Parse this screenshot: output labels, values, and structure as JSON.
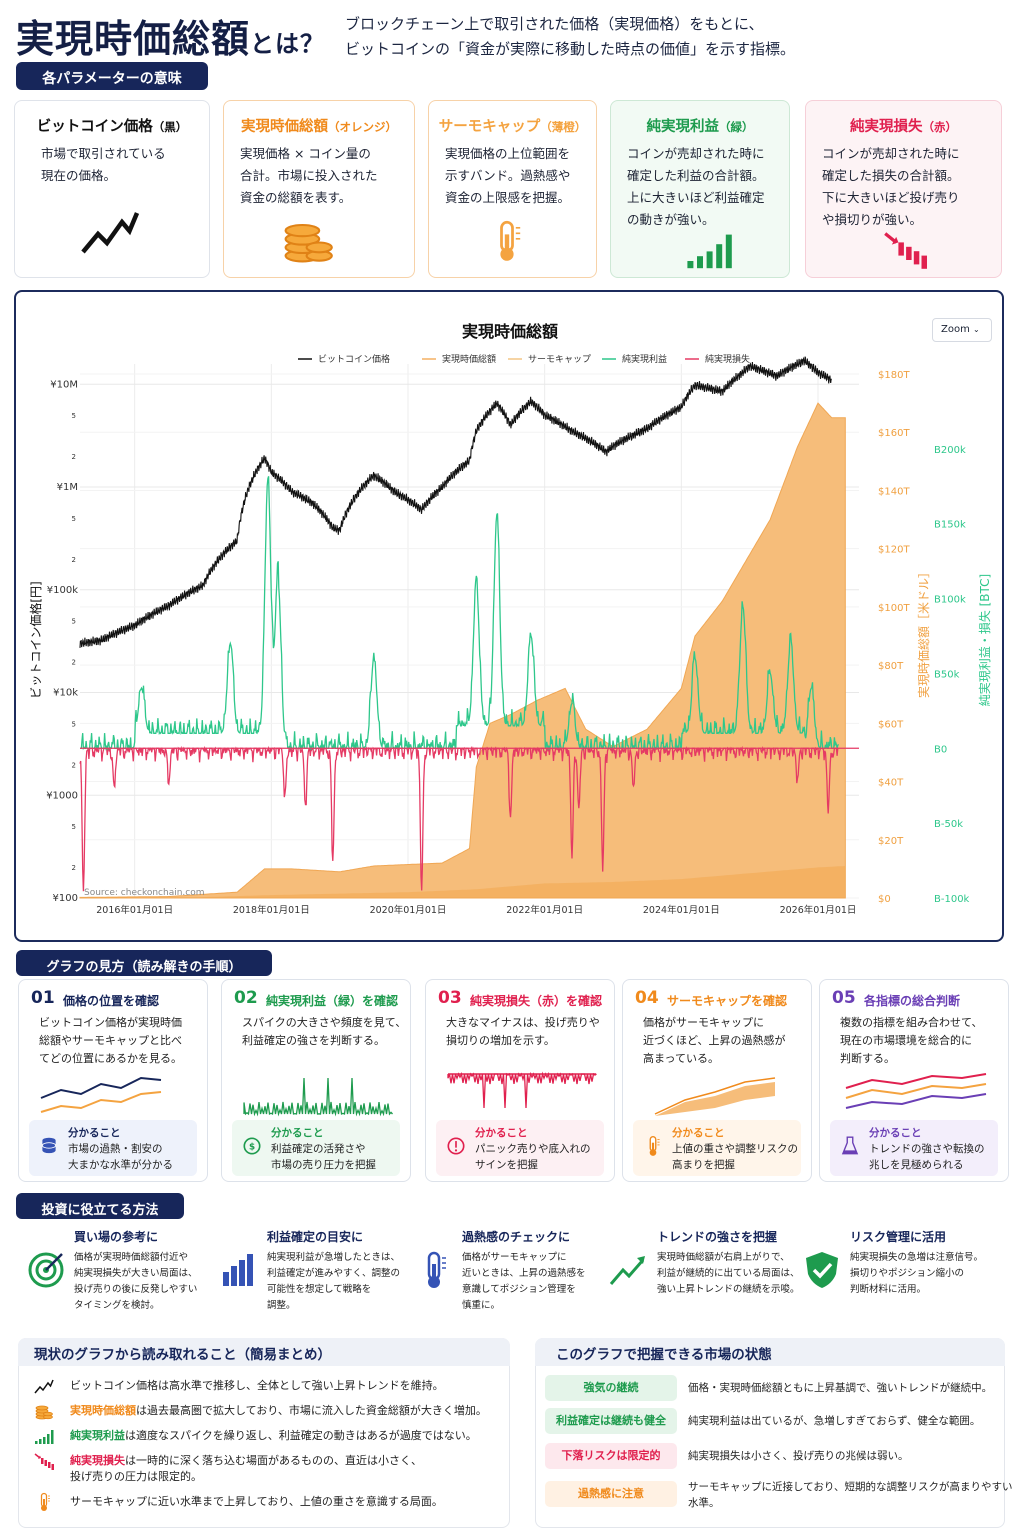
{
  "header": {
    "title_main": "実現時価総額",
    "title_suffix": "とは？",
    "subtitle_line1": "ブロックチェーン上で取引された価格（実現価格）をもとに、",
    "subtitle_line2": "ビットコインの「資金が実際に移動した時点の価値」を示す指標。"
  },
  "params": {
    "heading": "各パラメーターの意味",
    "cards": [
      {
        "title": "ビットコイン価格",
        "suffix": "（黒）",
        "desc": [
          "市場で取引されている",
          "現在の価格。"
        ],
        "color": "#111111",
        "icon": "trend-line-icon"
      },
      {
        "title": "実現時価総額",
        "suffix": "（オレンジ）",
        "desc": [
          "実現価格 × コイン量の",
          "合計。市場に投入された",
          "資金の総額を表す。"
        ],
        "color": "#f08a1c",
        "icon": "coin-stack-icon"
      },
      {
        "title": "サーモキャップ",
        "suffix": "（薄橙）",
        "desc": [
          "実現価格の上位範囲を",
          "示すバンド。過熱感や",
          "資金の上限感を把握。"
        ],
        "color": "#f4a340",
        "icon": "thermometer-icon"
      },
      {
        "title": "純実現利益",
        "suffix": "（緑）",
        "desc": [
          "コインが売却された時に",
          "確定した利益の合計額。",
          "上に大きいほど利益確定",
          "の動きが強い。"
        ],
        "color": "#1e9b4e",
        "icon": "bar-up-icon"
      },
      {
        "title": "純実現損失",
        "suffix": "（赤）",
        "desc": [
          "コインが売却された時に",
          "確定した損失の合計額。",
          "下に大きいほど投げ売り",
          "や損切りが強い。"
        ],
        "color": "#e0204e",
        "icon": "bar-down-icon"
      }
    ]
  },
  "chart": {
    "zoom_label": "Zoom",
    "source": "Source: checkonchain.com"
  },
  "chart_data": {
    "type": "line",
    "title": "実現時価総額",
    "legend": [
      "ビットコイン価格",
      "実現時価総額",
      "サーモキャップ",
      "純実現利益",
      "純実現損失"
    ],
    "x_ticks": [
      "2016年01月01日",
      "2018年01月01日",
      "2020年01月01日",
      "2022年01月01日",
      "2024年01月01日",
      "2026年01月01日"
    ],
    "ylabel_left": "ビットコイン価格[円]",
    "ylabel_right1": "実現時価総額［米ドル］",
    "ylabel_right2": "純実現利益・損失 [BTC]",
    "y_left_ticks": [
      "¥100",
      "2",
      "5",
      "¥1000",
      "2",
      "5",
      "¥10k",
      "2",
      "5",
      "¥100k",
      "2",
      "5",
      "¥1M",
      "2",
      "5",
      "¥10M"
    ],
    "y_right1_ticks": [
      "$0",
      "$20T",
      "$40T",
      "$60T",
      "$80T",
      "$100T",
      "$120T",
      "$140T",
      "$160T",
      "$180T"
    ],
    "y_right2_ticks": [
      "B-100k",
      "B-50k",
      "B0",
      "B50k",
      "B100k",
      "B150k",
      "B200k"
    ],
    "x_range": [
      2015.2,
      2026.6
    ],
    "y_left_log_range": [
      2,
      7.1
    ],
    "y_right1_range": [
      0,
      180
    ],
    "y_right2_range": [
      -100000,
      250000
    ],
    "series": [
      {
        "name": "ビットコイン価格",
        "unit": "JPY",
        "x": [
          2015.2,
          2015.5,
          2016.0,
          2016.5,
          2017.0,
          2017.5,
          2017.9,
          2018.0,
          2018.3,
          2018.6,
          2018.9,
          2019.0,
          2019.5,
          2019.8,
          2020.2,
          2020.5,
          2020.9,
          2021.0,
          2021.3,
          2021.5,
          2021.8,
          2022.0,
          2022.4,
          2022.9,
          2023.0,
          2023.5,
          2024.0,
          2024.2,
          2024.6,
          2024.9,
          2025.0,
          2025.4,
          2025.8,
          2026.0,
          2026.2
        ],
        "y": [
          30000,
          32000,
          45000,
          70000,
          110000,
          300000,
          1900000,
          1400000,
          900000,
          700000,
          400000,
          380000,
          1300000,
          900000,
          600000,
          1000000,
          1800000,
          3500000,
          6500000,
          4000000,
          6800000,
          5000000,
          3500000,
          2200000,
          2500000,
          3700000,
          6000000,
          9800000,
          8500000,
          13000000,
          15000000,
          12000000,
          17000000,
          13000000,
          11000000
        ]
      },
      {
        "name": "実現時価総額",
        "unit": "USD T",
        "x": [
          2015.2,
          2016.5,
          2017.5,
          2017.9,
          2018.3,
          2019.0,
          2019.5,
          2020.5,
          2020.9,
          2021.0,
          2021.2,
          2021.5,
          2021.9,
          2022.3,
          2022.6,
          2023.0,
          2023.5,
          2024.0,
          2024.2,
          2024.6,
          2025.0,
          2025.3,
          2025.7,
          2026.0,
          2026.2,
          2026.4
        ],
        "y": [
          0.2,
          0.5,
          2,
          10,
          10,
          9,
          11,
          12,
          17,
          45,
          60,
          63,
          68,
          72,
          58,
          52,
          58,
          72,
          90,
          102,
          118,
          130,
          155,
          170,
          165,
          165
        ]
      },
      {
        "name": "サーモキャップ",
        "unit": "USD T",
        "x": [
          2015.2,
          2017.0,
          2018.0,
          2019.0,
          2020.0,
          2021.0,
          2022.0,
          2023.0,
          2024.0,
          2025.0,
          2026.0,
          2026.4
        ],
        "y": [
          0,
          0.3,
          1,
          1.5,
          2,
          3,
          5,
          5.5,
          6.5,
          8.5,
          10.5,
          11
        ]
      }
    ]
  },
  "howto": {
    "heading": "グラフの見方（読み解きの手順）",
    "know_label": "分かること",
    "steps": [
      {
        "num": "01",
        "title": "価格の位置を確認",
        "desc": [
          "ビットコイン価格が実現時価",
          "総額やサーモキャップと比べ",
          "てどの位置にあるかを見る。"
        ],
        "know": [
          "市場の過熱・割安の",
          "大まかな水準が分かる"
        ],
        "color": "#17265a",
        "bg": "#eef2fb"
      },
      {
        "num": "02",
        "title": "純実現利益（緑）を確認",
        "desc": [
          "スパイクの大きさや頻度を見て、",
          "利益確定の強さを判断する。"
        ],
        "know": [
          "利益確定の活発さや",
          "市場の売り圧力を把握"
        ],
        "color": "#1e9b4e",
        "bg": "#eef8f1"
      },
      {
        "num": "03",
        "title": "純実現損失（赤）を確認",
        "desc": [
          "大きなマイナスは、投げ売りや",
          "損切りの増加を示す。"
        ],
        "know": [
          "パニック売りや底入れの",
          "サインを把握"
        ],
        "color": "#e0204e",
        "bg": "#fdf0f3"
      },
      {
        "num": "04",
        "title": "サーモキャップを確認",
        "desc": [
          "価格がサーモキャップに",
          "近づくほど、上昇の過熱感が",
          "高まっている。"
        ],
        "know": [
          "上値の重さや調整リスクの",
          "高まりを把握"
        ],
        "color": "#f08a1c",
        "bg": "#fff5ea"
      },
      {
        "num": "05",
        "title": "各指標の総合判断",
        "desc": [
          "複数の指標を組み合わせて、",
          "現在の市場環境を総合的に",
          "判断する。"
        ],
        "know": [
          "トレンドの強さや転換の",
          "兆しを見極められる"
        ],
        "color": "#6a3fb5",
        "bg": "#f3eefb"
      }
    ]
  },
  "usage": {
    "heading": "投資に役立てる方法",
    "items": [
      {
        "title": "買い場の参考に",
        "desc": [
          "価格が実現時価総額付近や",
          "純実現損失が大きい局面は、",
          "投げ売りの後に反発しやすい",
          "タイミングを検討。"
        ],
        "icon": "target-icon"
      },
      {
        "title": "利益確定の目安に",
        "desc": [
          "純実現利益が急増したときは、",
          "利益確定が進みやすく、調整の",
          "可能性を想定して戦略を",
          "調整。"
        ],
        "icon": "bar-chart-icon"
      },
      {
        "title": "過熱感のチェックに",
        "desc": [
          "価格がサーモキャップに",
          "近いときは、上昇の過熱感を",
          "意識してポジション管理を",
          "慎重に。"
        ],
        "icon": "thermometer-icon"
      },
      {
        "title": "トレンドの強さを把握",
        "desc": [
          "実現時価総額が右肩上がりで、",
          "利益が継続的に出ている局面は、",
          "強い上昇トレンドの継続を示唆。"
        ],
        "icon": "trend-arrow-icon"
      },
      {
        "title": "リスク管理に活用",
        "desc": [
          "純実現損失の急増は注意信号。",
          "損切りやポジション縮小の",
          "判断材料に活用。"
        ],
        "icon": "shield-check-icon"
      }
    ]
  },
  "summary": {
    "heading": "現状のグラフから読み取れること（簡易まとめ）",
    "rows": [
      {
        "hl": "",
        "text": "ビットコイン価格は高水準で推移し、全体として強い上昇トレンドを維持。",
        "icon": "trend-line-icon",
        "color": "#111111"
      },
      {
        "hl": "実現時価総額",
        "text": "は過去最高圏で拡大しており、市場に流入した資金総額が大きく増加。",
        "icon": "coin-stack-icon",
        "color": "#f08a1c"
      },
      {
        "hl": "純実現利益",
        "text": "は適度なスパイクを繰り返し、利益確定の動きはあるが過度ではない。",
        "icon": "bar-up-icon",
        "color": "#1e9b4e"
      },
      {
        "hl": "純実現損失",
        "text": "は一時的に深く落ち込む場面があるものの、直近は小さく、",
        "text2": "投げ売りの圧力は限定的。",
        "icon": "bar-down-icon",
        "color": "#e0204e"
      },
      {
        "hl": "",
        "text": "サーモキャップに近い水準まで上昇しており、上値の重さを意識する局面。",
        "icon": "thermometer-icon",
        "color": "#f08a1c"
      }
    ]
  },
  "market": {
    "heading": "このグラフで把握できる市場の状態",
    "rows": [
      {
        "label": "強気の継続",
        "desc": [
          "価格・実現時価総額ともに上昇基調で、強いトレンドが継続中。"
        ],
        "color": "#1e9b4e",
        "bg": "#e4f4e9"
      },
      {
        "label": "利益確定は継続も健全",
        "desc": [
          "純実現利益は出ているが、急増しすぎておらず、健全な範囲。"
        ],
        "color": "#1e9b4e",
        "bg": "#e4f4e9"
      },
      {
        "label": "下落リスクは限定的",
        "desc": [
          "純実現損失は小さく、投げ売りの兆候は弱い。"
        ],
        "color": "#e0204e",
        "bg": "#fde8ed"
      },
      {
        "label": "過熱感に注意",
        "desc": [
          "サーモキャップに近接しており、短期的な調整リスクが高まりやすい",
          "水準。"
        ],
        "color": "#f08a1c",
        "bg": "#fff1e3"
      }
    ]
  }
}
